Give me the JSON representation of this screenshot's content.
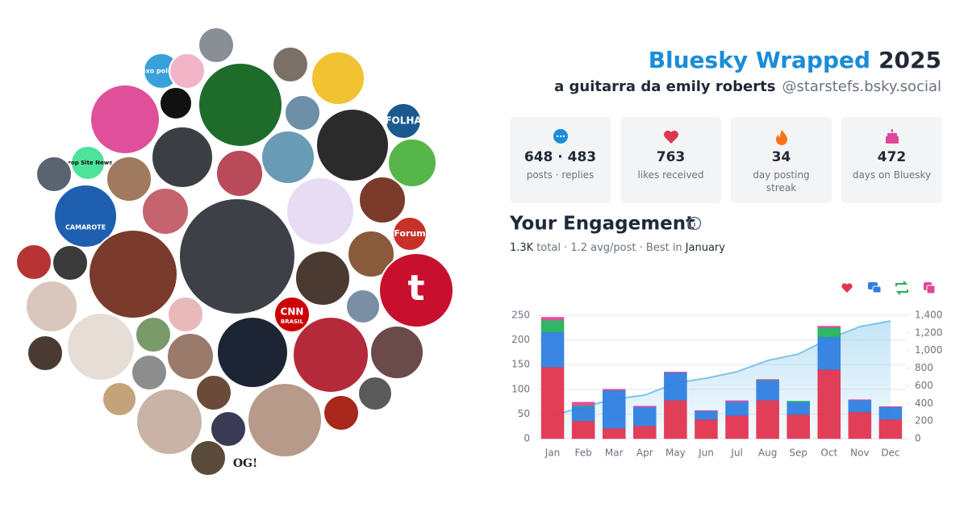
{
  "header": {
    "title": "Bluesky Wrapped",
    "year": "2025",
    "display_name": "a guitarra da emily roberts",
    "handle": "@starstefs.bsky.social"
  },
  "stats": [
    {
      "value": "648 · 483",
      "label": "posts · replies"
    },
    {
      "value": "763",
      "label": "likes received"
    },
    {
      "value": "34",
      "label": "day posting streak"
    },
    {
      "value": "472",
      "label": "days on Bluesky"
    }
  ],
  "engagement": {
    "title": "Your Engagement",
    "total": "1.3K",
    "summary": "total · 1.2 avg/post · Best in",
    "best_month": "January"
  },
  "avatars": {
    "labels": [
      "eixo político",
      "FOLHA",
      "Drop Site News",
      "CAMAROTE",
      "Forum",
      "t",
      "CNN",
      "BRASIL",
      "OG!"
    ]
  },
  "chart_data": {
    "type": "bar",
    "stacked": true,
    "categories": [
      "Jan",
      "Feb",
      "Mar",
      "Apr",
      "May",
      "Jun",
      "Jul",
      "Aug",
      "Sep",
      "Oct",
      "Nov",
      "Dec"
    ],
    "series": [
      {
        "color": "#e0344f",
        "values": [
          145,
          36,
          21,
          26,
          78,
          39,
          47,
          78,
          49,
          140,
          54,
          39
        ]
      },
      {
        "color": "#2f7fe0",
        "values": [
          71,
          29,
          77,
          38,
          56,
          17,
          28,
          40,
          25,
          66,
          24,
          25
        ]
      },
      {
        "color": "#22b35e",
        "values": [
          24,
          2,
          0,
          0,
          0,
          0,
          0,
          1,
          2,
          19,
          0,
          0
        ]
      },
      {
        "color": "#e0479a",
        "values": [
          6,
          7,
          2,
          2,
          1,
          1,
          2,
          1,
          0,
          3,
          1,
          1
        ]
      },
      {
        "type": "line",
        "axis": "y2",
        "color": "#7cc4ec",
        "values": [
          265,
          357,
          448,
          494,
          631,
          686,
          759,
          887,
          960,
          1134,
          1271,
          1335
        ]
      }
    ],
    "ylim": [
      0,
      250
    ],
    "yticks": [
      0,
      50,
      100,
      150,
      200,
      250
    ],
    "y2lim": [
      0,
      1400
    ],
    "y2ticks": [
      0,
      200,
      400,
      600,
      800,
      {
        "value": 1000,
        "label": "1,000"
      },
      {
        "value": 1200,
        "label": "1,200"
      },
      {
        "value": 1400,
        "label": "1,400"
      }
    ],
    "grid": true
  }
}
